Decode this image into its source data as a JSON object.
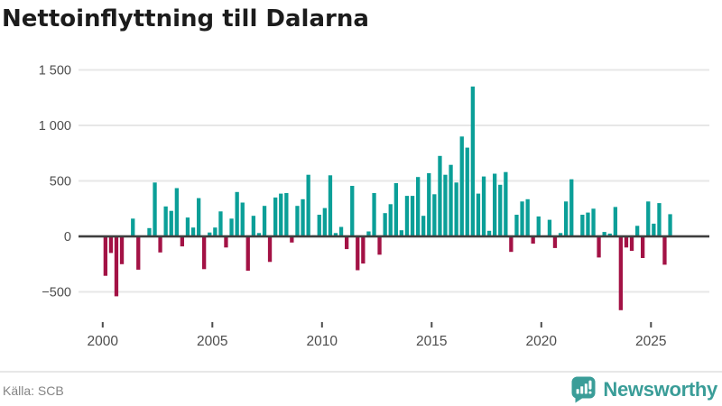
{
  "title": "Nettoinflyttning till Dalarna",
  "source": "Källa: SCB",
  "brand": {
    "name": "Newsworthy"
  },
  "colors": {
    "positive": "#0b9f98",
    "negative": "#a31245",
    "zero_line": "#3e3e3e",
    "grid": "#e7e7e7",
    "axis_text": "#4d4d4d",
    "title_text": "#1c1c1c",
    "source_text": "#848484",
    "brand_teal": "#3a9d98"
  },
  "chart_data": {
    "type": "bar",
    "title": "Nettoinflyttning till Dalarna",
    "frequency": "quarterly",
    "start_year": 2000,
    "start_quarter": 1,
    "values": [
      -355,
      -150,
      -540,
      -250,
      0,
      160,
      -300,
      0,
      75,
      485,
      -145,
      270,
      230,
      435,
      -90,
      170,
      80,
      345,
      -295,
      35,
      80,
      225,
      -100,
      160,
      400,
      305,
      -310,
      185,
      30,
      275,
      -230,
      350,
      385,
      390,
      -55,
      275,
      335,
      555,
      10,
      195,
      255,
      550,
      30,
      85,
      -115,
      455,
      -305,
      -245,
      45,
      390,
      -165,
      210,
      290,
      480,
      55,
      365,
      365,
      535,
      185,
      570,
      380,
      725,
      555,
      645,
      485,
      900,
      800,
      1350,
      385,
      540,
      50,
      565,
      465,
      580,
      -140,
      195,
      315,
      335,
      -65,
      180,
      0,
      150,
      -105,
      30,
      315,
      515,
      0,
      195,
      215,
      250,
      -190,
      40,
      25,
      265,
      -665,
      -100,
      -130,
      95,
      -195,
      315,
      115,
      300,
      -255,
      200
    ],
    "x_tick_years": [
      2000,
      2005,
      2010,
      2015,
      2020,
      2025
    ],
    "x_tick_labels": [
      "2000",
      "2005",
      "2010",
      "2015",
      "2020",
      "2025"
    ],
    "y_ticks": [
      {
        "value": 1500,
        "label": "1 500"
      },
      {
        "value": 1000,
        "label": "1 000"
      },
      {
        "value": 500,
        "label": "500"
      },
      {
        "value": 0,
        "label": "0"
      },
      {
        "value": -500,
        "label": "−500"
      }
    ],
    "ylim": [
      -700,
      1560
    ],
    "grid": true,
    "legend": false
  }
}
